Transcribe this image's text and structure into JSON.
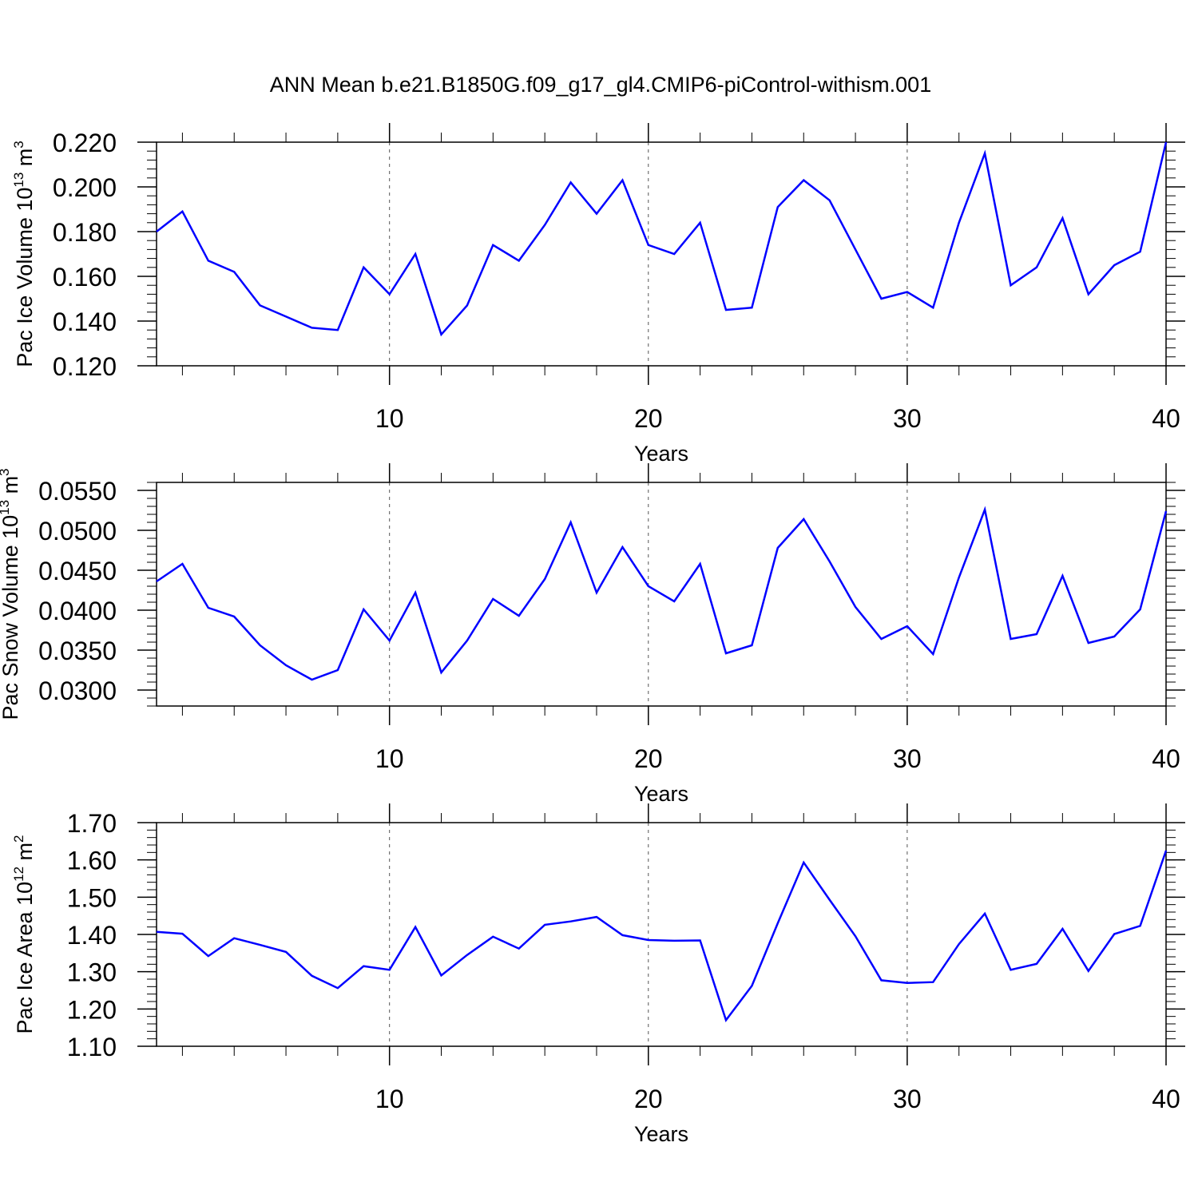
{
  "title": "ANN Mean b.e21.B1850G.f09_g17_gl4.CMIP6-piControl-withism.001",
  "line_color": "#0000ff",
  "chart_data": [
    {
      "type": "line",
      "ylabel": "Pac Ice Volume",
      "ylabel_unit_base": "10",
      "ylabel_unit_exp": "13",
      "ylabel_unit_sym": "m",
      "ylabel_unit_pow": "3",
      "xlabel": "Years",
      "xlim": [
        1,
        40
      ],
      "ylim": [
        0.12,
        0.22
      ],
      "xticks": [
        "10",
        "20",
        "30",
        "40"
      ],
      "yticks": [
        "0.120",
        "0.140",
        "0.160",
        "0.180",
        "0.200",
        "0.220"
      ],
      "grid_x": true,
      "x": [
        1,
        2,
        3,
        4,
        5,
        6,
        7,
        8,
        9,
        10,
        11,
        12,
        13,
        14,
        15,
        16,
        17,
        18,
        19,
        20,
        21,
        22,
        23,
        24,
        25,
        26,
        27,
        28,
        29,
        30,
        31,
        32,
        33,
        34,
        35,
        36,
        37,
        38,
        39,
        40
      ],
      "values": [
        0.18,
        0.189,
        0.167,
        0.162,
        0.147,
        0.142,
        0.137,
        0.136,
        0.164,
        0.152,
        0.17,
        0.134,
        0.147,
        0.174,
        0.167,
        0.183,
        0.202,
        0.188,
        0.203,
        0.174,
        0.17,
        0.184,
        0.145,
        0.146,
        0.191,
        0.203,
        0.194,
        0.172,
        0.15,
        0.153,
        0.146,
        0.184,
        0.215,
        0.156,
        0.164,
        0.186,
        0.152,
        0.165,
        0.171,
        0.22
      ]
    },
    {
      "type": "line",
      "ylabel": "Pac Snow Volume",
      "ylabel_unit_base": "10",
      "ylabel_unit_exp": "13",
      "ylabel_unit_sym": "m",
      "ylabel_unit_pow": "3",
      "xlabel": "Years",
      "xlim": [
        1,
        40
      ],
      "ylim": [
        0.028,
        0.056
      ],
      "xticks": [
        "10",
        "20",
        "30",
        "40"
      ],
      "yticks": [
        "0.0300",
        "0.0350",
        "0.0400",
        "0.0450",
        "0.0500",
        "0.0550"
      ],
      "grid_x": true,
      "x": [
        1,
        2,
        3,
        4,
        5,
        6,
        7,
        8,
        9,
        10,
        11,
        12,
        13,
        14,
        15,
        16,
        17,
        18,
        19,
        20,
        21,
        22,
        23,
        24,
        25,
        26,
        27,
        28,
        29,
        30,
        31,
        32,
        33,
        34,
        35,
        36,
        37,
        38,
        39,
        40
      ],
      "values": [
        0.0436,
        0.0458,
        0.0403,
        0.0392,
        0.0356,
        0.0331,
        0.0313,
        0.0325,
        0.0401,
        0.0362,
        0.0422,
        0.0322,
        0.0362,
        0.0414,
        0.0393,
        0.0439,
        0.051,
        0.0422,
        0.0479,
        0.043,
        0.0411,
        0.0458,
        0.0346,
        0.0356,
        0.0478,
        0.0514,
        0.0461,
        0.0404,
        0.0364,
        0.038,
        0.0345,
        0.0441,
        0.0526,
        0.0364,
        0.037,
        0.0443,
        0.0359,
        0.0367,
        0.0401,
        0.0524
      ]
    },
    {
      "type": "line",
      "ylabel": "Pac Ice Area",
      "ylabel_unit_base": "10",
      "ylabel_unit_exp": "12",
      "ylabel_unit_sym": "m",
      "ylabel_unit_pow": "2",
      "xlabel": "Years",
      "xlim": [
        1,
        40
      ],
      "ylim": [
        1.1,
        1.7
      ],
      "xticks": [
        "10",
        "20",
        "30",
        "40"
      ],
      "yticks": [
        "1.10",
        "1.20",
        "1.30",
        "1.40",
        "1.50",
        "1.60",
        "1.70"
      ],
      "grid_x": true,
      "x": [
        1,
        2,
        3,
        4,
        5,
        6,
        7,
        8,
        9,
        10,
        11,
        12,
        13,
        14,
        15,
        16,
        17,
        18,
        19,
        20,
        21,
        22,
        23,
        24,
        25,
        26,
        27,
        28,
        29,
        30,
        31,
        32,
        33,
        34,
        35,
        36,
        37,
        38,
        39,
        40
      ],
      "values": [
        1.407,
        1.402,
        1.342,
        1.39,
        1.372,
        1.353,
        1.289,
        1.256,
        1.315,
        1.305,
        1.42,
        1.29,
        1.345,
        1.394,
        1.362,
        1.426,
        1.435,
        1.447,
        1.398,
        1.385,
        1.383,
        1.384,
        1.17,
        1.262,
        1.43,
        1.593,
        1.493,
        1.395,
        1.277,
        1.27,
        1.272,
        1.374,
        1.456,
        1.305,
        1.321,
        1.415,
        1.302,
        1.401,
        1.423,
        1.625
      ]
    }
  ]
}
